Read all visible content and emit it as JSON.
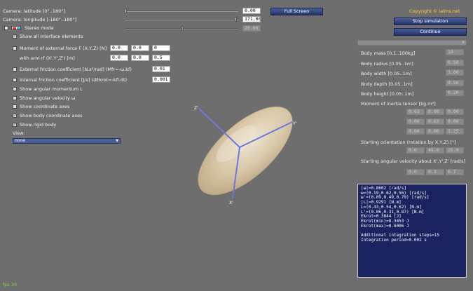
{
  "camera": {
    "latitude_label": "Camera: latitude [0°..180°]",
    "latitude_value": "0.00",
    "longitude_label": "Camera: longitude [-180°..180°]",
    "longitude_value": "171.00",
    "stereo_label": "Stereo mode",
    "stereo_value": "20.00"
  },
  "buttons": {
    "fullscreen": "Full Screen",
    "stop": "Stop simulation",
    "continue": "Continue"
  },
  "copyright": "Copyright © ialms.net",
  "options": {
    "show_all": "Show all interface elements",
    "moment_force_label": "Moment of external force F (X,Y,Z) [N]",
    "moment_force_values": [
      "0.0",
      "0.0",
      "0"
    ],
    "arm_label": "with arm rf (X',Y',Z') [m]",
    "arm_values": [
      "0.0",
      "0.0",
      "0.5"
    ],
    "ext_friction_label": "External friction coefficient [N.s²/rad] (Mfr=-ω.kf)",
    "ext_friction_value": "0.01",
    "int_friction_label": "Internal friction coefficient [J/s] (dEkrot=-kfi.dt)",
    "int_friction_value": "0.001",
    "show_angular_momentum": "Show angular momentum L",
    "show_angular_velocity": "Show angular velocity ω",
    "show_coordinate_axes": "Show coordinate axes",
    "show_body_axes": "Show body coordinate axes",
    "show_rigid_body": "Show rigid body",
    "view_label": "View:",
    "view_value": "none"
  },
  "body": {
    "mass_label": "Body mass [0.1..100kg]",
    "mass_value": "10",
    "radius_label": "Body radius [0.05..1m]",
    "radius_value": "0.50",
    "width_label": "Body width [0.05..1m]",
    "width_value": "1.00",
    "depth_label": "Body depth [0.05..1m]",
    "depth_value": "0.50",
    "height_label": "Body height [0.05..1m]",
    "height_value": "0.20",
    "inertia_label": "Moment of inertia tensor [kg.m²]",
    "inertia": [
      [
        "0.63",
        "0.00",
        "0.00"
      ],
      [
        "0.00",
        "0.63",
        "0.00"
      ],
      [
        "0.00",
        "0.00",
        "1.25"
      ]
    ],
    "orientation_label": "Starting orientation (rotation by X,Y,Z) [°]",
    "orientation": [
      "0.0",
      "45.0",
      "25.0"
    ],
    "angvel_label": "Starting angular velocity about X',Y',Z' [rad/s]",
    "angvel": [
      "0.0",
      "0.3",
      "0.7"
    ]
  },
  "info_lines": [
    "|ω|=0.8602 [rad/s]",
    "ω=(0.19,0.62,0.56) [rad/s]",
    "ω'=(0.09,0.49,0.70) [rad/s]",
    "|L|=0.9291 [N.m]",
    "L=(0.43,0.54,0.62) [N.m]",
    "L'=(0.06,0.31,0.87) [N.m]",
    "Ekrot=0.3844 [J]",
    "Ekrot(min)=0.3453 J",
    "Ekrot(max)=0.6006 J",
    "",
    "Additional integration steps=15",
    "Integration period=0.002 s"
  ],
  "scene": {
    "axis_labels": [
      "Z'",
      "Y'",
      "X'"
    ]
  },
  "fps": "fps 30",
  "colors": {
    "background": "#6e6e6e",
    "button": "#2e3f7a",
    "info_panel": "#1a2360",
    "axis": "#6f78d8",
    "fps": "#7fd14a",
    "copyright": "#ffd23a"
  }
}
